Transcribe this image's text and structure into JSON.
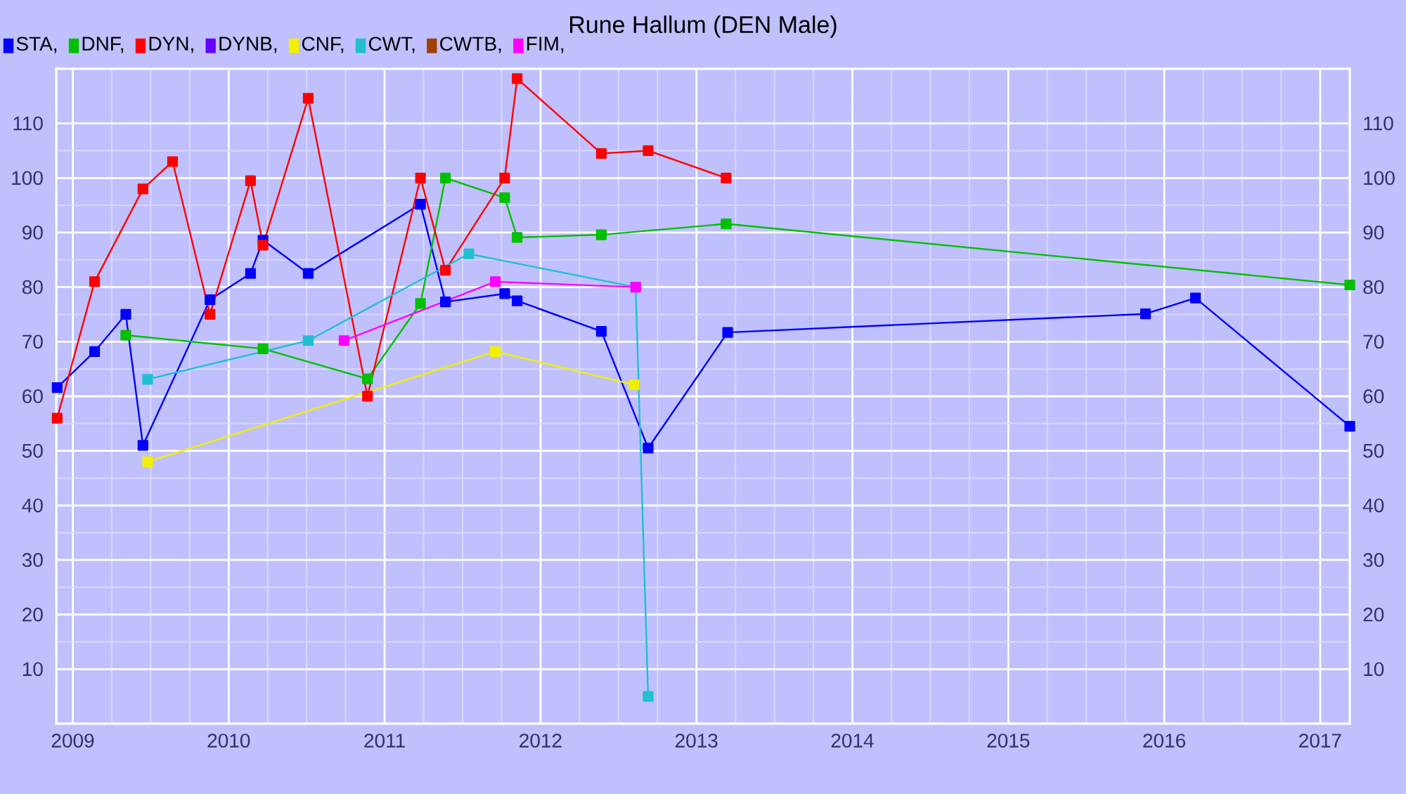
{
  "chart_data": {
    "type": "line",
    "title": "Rune Hallum (DEN Male)",
    "xlim": [
      2008.894,
      2017.19
    ],
    "ylim": [
      0,
      120
    ],
    "y2lim": [
      0,
      120
    ],
    "xticks": [
      2009,
      2010,
      2011,
      2012,
      2013,
      2014,
      2015,
      2016,
      2017
    ],
    "yticks": [
      10,
      20,
      30,
      40,
      50,
      60,
      70,
      80,
      90,
      100,
      110
    ],
    "y2ticks": [
      10,
      20,
      30,
      40,
      50,
      60,
      70,
      80,
      90,
      100,
      110
    ],
    "grid": true,
    "legend": "top left",
    "marker": "square",
    "line_style": "solid",
    "series": [
      {
        "name": "STA,",
        "color": "#0000ff",
        "x": [
          2008.9,
          2009.14,
          2009.34,
          2009.45,
          2009.88,
          2010.14,
          2010.22,
          2010.51,
          2011.23,
          2011.39,
          2011.77,
          2011.85,
          2012.39,
          2012.69,
          2013.2,
          2015.88,
          2016.2,
          2017.19
        ],
        "values": [
          61.6,
          68.2,
          75,
          51,
          77.7,
          82.5,
          88.6,
          82.5,
          95.2,
          77.3,
          78.8,
          77.5,
          71.9,
          50.5,
          71.7,
          75.1,
          78,
          54.5
        ]
      },
      {
        "name": "DNF,",
        "color": "#00c000",
        "x": [
          2009.34,
          2010.22,
          2010.89,
          2011.23,
          2011.39,
          2011.77,
          2011.85,
          2012.39,
          2013.19,
          2017.19
        ],
        "values": [
          71.2,
          68.7,
          63.2,
          77,
          100,
          96.4,
          89.1,
          89.6,
          91.6,
          80.4
        ]
      },
      {
        "name": "DYN,",
        "color": "#ff0000",
        "x": [
          2008.9,
          2009.14,
          2009.45,
          2009.64,
          2009.88,
          2010.14,
          2010.22,
          2010.51,
          2010.89,
          2011.23,
          2011.39,
          2011.77,
          2011.85,
          2012.39,
          2012.69,
          2013.19
        ],
        "values": [
          56,
          81,
          98,
          103,
          75,
          99.5,
          87.7,
          114.6,
          60,
          100,
          83.1,
          100,
          118.2,
          104.5,
          105,
          100
        ]
      },
      {
        "name": "DYNB,",
        "color": "#6600ff"
      },
      {
        "name": "CNF,",
        "color": "#f0f000",
        "x": [
          2009.48,
          2011.71,
          2012.6
        ],
        "values": [
          48,
          68.2,
          62.1
        ]
      },
      {
        "name": "CWT,",
        "color": "#20c0d0",
        "x": [
          2009.48,
          2010.51,
          2011.54,
          2012.61,
          2012.69
        ],
        "values": [
          63.1,
          70.2,
          86.1,
          80,
          5
        ]
      },
      {
        "name": "CWTB,",
        "color": "#a04000"
      },
      {
        "name": "FIM,",
        "color": "#ff00ff",
        "x": [
          2010.74,
          2011.71,
          2012.61
        ],
        "values": [
          70.2,
          81,
          80
        ]
      }
    ]
  }
}
